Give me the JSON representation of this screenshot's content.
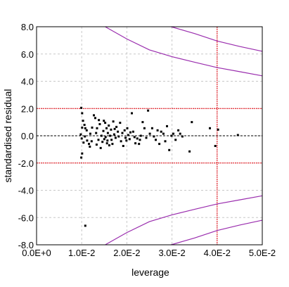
{
  "chart_data": {
    "type": "scatter",
    "title": "",
    "xlabel": "leverage",
    "ylabel": "standardised residual",
    "xlim": [
      0,
      0.05
    ],
    "ylim": [
      -8,
      8
    ],
    "x_ticks": [
      {
        "value": 0.0,
        "label": "0.0E+0"
      },
      {
        "value": 0.01,
        "label": "1.0E-2"
      },
      {
        "value": 0.02,
        "label": "2.0E-2"
      },
      {
        "value": 0.03,
        "label": "3.0E-2"
      },
      {
        "value": 0.04,
        "label": "4.0E-2"
      },
      {
        "value": 0.05,
        "label": "5.0E-2"
      }
    ],
    "y_ticks": [
      {
        "value": 8,
        "label": "8.0"
      },
      {
        "value": 6,
        "label": "6.0"
      },
      {
        "value": 4,
        "label": "4.0"
      },
      {
        "value": 2,
        "label": "2.0"
      },
      {
        "value": 0,
        "label": "0.0"
      },
      {
        "value": -2,
        "label": "-2.0"
      },
      {
        "value": -4,
        "label": "-4.0"
      },
      {
        "value": -6,
        "label": "-6.0"
      },
      {
        "value": -8,
        "label": "-8.0"
      }
    ],
    "grid": true,
    "reference_lines": {
      "horizontal_dashed": [
        0
      ],
      "horizontal_red": [
        2,
        -2
      ],
      "vertical_red": [
        0.04
      ]
    },
    "cooks_distance_curves": [
      {
        "points": [
          [
            0.0152,
            8.0
          ],
          [
            0.02,
            7.1
          ],
          [
            0.025,
            6.3
          ],
          [
            0.03,
            5.8
          ],
          [
            0.035,
            5.4
          ],
          [
            0.04,
            5.0
          ],
          [
            0.045,
            4.7
          ],
          [
            0.05,
            4.4
          ]
        ]
      },
      {
        "points": [
          [
            0.0152,
            -8.0
          ],
          [
            0.02,
            -7.1
          ],
          [
            0.025,
            -6.3
          ],
          [
            0.03,
            -5.8
          ],
          [
            0.035,
            -5.4
          ],
          [
            0.04,
            -5.0
          ],
          [
            0.045,
            -4.7
          ],
          [
            0.05,
            -4.4
          ]
        ]
      },
      {
        "points": [
          [
            0.0298,
            8.0
          ],
          [
            0.035,
            7.5
          ],
          [
            0.04,
            6.95
          ],
          [
            0.045,
            6.55
          ],
          [
            0.05,
            6.2
          ]
        ]
      },
      {
        "points": [
          [
            0.0298,
            -8.0
          ],
          [
            0.035,
            -7.5
          ],
          [
            0.04,
            -6.95
          ],
          [
            0.045,
            -6.55
          ],
          [
            0.05,
            -6.2
          ]
        ]
      }
    ],
    "points": [
      [
        0.0099,
        2.05
      ],
      [
        0.0101,
        1.65
      ],
      [
        0.0103,
        1.1
      ],
      [
        0.0106,
        0.8
      ],
      [
        0.0108,
        0.55
      ],
      [
        0.0111,
        0.4
      ],
      [
        0.0098,
        0.1
      ],
      [
        0.01,
        -0.2
      ],
      [
        0.0104,
        -0.5
      ],
      [
        0.0107,
        -0.05
      ],
      [
        0.0101,
        -1.3
      ],
      [
        0.0099,
        -1.6
      ],
      [
        0.0112,
        -0.35
      ],
      [
        0.0116,
        -0.6
      ],
      [
        0.0119,
        0.15
      ],
      [
        0.0122,
        -0.4
      ],
      [
        0.0118,
        -0.8
      ],
      [
        0.0123,
        0.6
      ],
      [
        0.0127,
        1.5
      ],
      [
        0.013,
        1.3
      ],
      [
        0.0132,
        0.2
      ],
      [
        0.0134,
        0.55
      ],
      [
        0.0138,
        1.15
      ],
      [
        0.014,
        0.85
      ],
      [
        0.0137,
        -0.3
      ],
      [
        0.0142,
        -0.9
      ],
      [
        0.0144,
        0.0
      ],
      [
        0.0146,
        -0.45
      ],
      [
        0.0148,
        0.35
      ],
      [
        0.015,
        -0.25
      ],
      [
        0.0152,
        0.95
      ],
      [
        0.0153,
        -0.1
      ],
      [
        0.0155,
        0.55
      ],
      [
        0.0156,
        -0.55
      ],
      [
        0.0158,
        0.2
      ],
      [
        0.016,
        0.75
      ],
      [
        0.0161,
        -0.7
      ],
      [
        0.0163,
        0.0
      ],
      [
        0.0165,
        0.45
      ],
      [
        0.0166,
        -0.3
      ],
      [
        0.0168,
        -0.6
      ],
      [
        0.017,
        1.05
      ],
      [
        0.0172,
        0.1
      ],
      [
        0.0175,
        -0.15
      ],
      [
        0.0177,
        0.65
      ],
      [
        0.018,
        0.3
      ],
      [
        0.0182,
        -0.05
      ],
      [
        0.0185,
        0.95
      ],
      [
        0.0187,
        -0.4
      ],
      [
        0.019,
        0.2
      ],
      [
        0.0192,
        -0.75
      ],
      [
        0.0195,
        0.4
      ],
      [
        0.0197,
        -0.15
      ],
      [
        0.0199,
        -0.35
      ],
      [
        0.0203,
        0.05
      ],
      [
        0.0206,
        -0.25
      ],
      [
        0.0208,
        0.25
      ],
      [
        0.0211,
        1.65
      ],
      [
        0.0214,
        0.3
      ],
      [
        0.0217,
        -0.1
      ],
      [
        0.0219,
        -0.55
      ],
      [
        0.0223,
        -0.2
      ],
      [
        0.0227,
        -0.6
      ],
      [
        0.0231,
        0.0
      ],
      [
        0.0235,
        1.0
      ],
      [
        0.0239,
        0.55
      ],
      [
        0.0243,
        -0.15
      ],
      [
        0.0247,
        1.85
      ],
      [
        0.0251,
        0.15
      ],
      [
        0.0256,
        0.55
      ],
      [
        0.026,
        -0.05
      ],
      [
        0.0264,
        -0.3
      ],
      [
        0.0268,
        0.4
      ],
      [
        0.0272,
        -0.6
      ],
      [
        0.0276,
        0.3
      ],
      [
        0.0281,
        0.15
      ],
      [
        0.0285,
        -0.4
      ],
      [
        0.0289,
        0.7
      ],
      [
        0.0294,
        -1.05
      ],
      [
        0.0299,
        0.0
      ],
      [
        0.0303,
        0.15
      ],
      [
        0.0308,
        -0.3
      ],
      [
        0.0314,
        0.4
      ],
      [
        0.0318,
        0.15
      ],
      [
        0.0323,
        -0.05
      ],
      [
        0.0339,
        -1.15
      ],
      [
        0.0344,
        1.0
      ],
      [
        0.0384,
        0.55
      ],
      [
        0.0396,
        -0.75
      ],
      [
        0.0402,
        0.45
      ],
      [
        0.0446,
        0.05
      ],
      [
        0.0108,
        -6.6
      ],
      [
        0.0101,
        0.6
      ],
      [
        0.0133,
        -0.65
      ],
      [
        0.0149,
        1.1
      ],
      [
        0.0157,
        -0.35
      ],
      [
        0.0173,
        0.5
      ],
      [
        0.0201,
        0.55
      ],
      [
        0.0229,
        -0.3
      ]
    ],
    "colors": {
      "points": "#000000",
      "reference_red": "#e8000b",
      "cooks_curve": "#9a2dae",
      "grid": "#c8c8c8"
    }
  }
}
